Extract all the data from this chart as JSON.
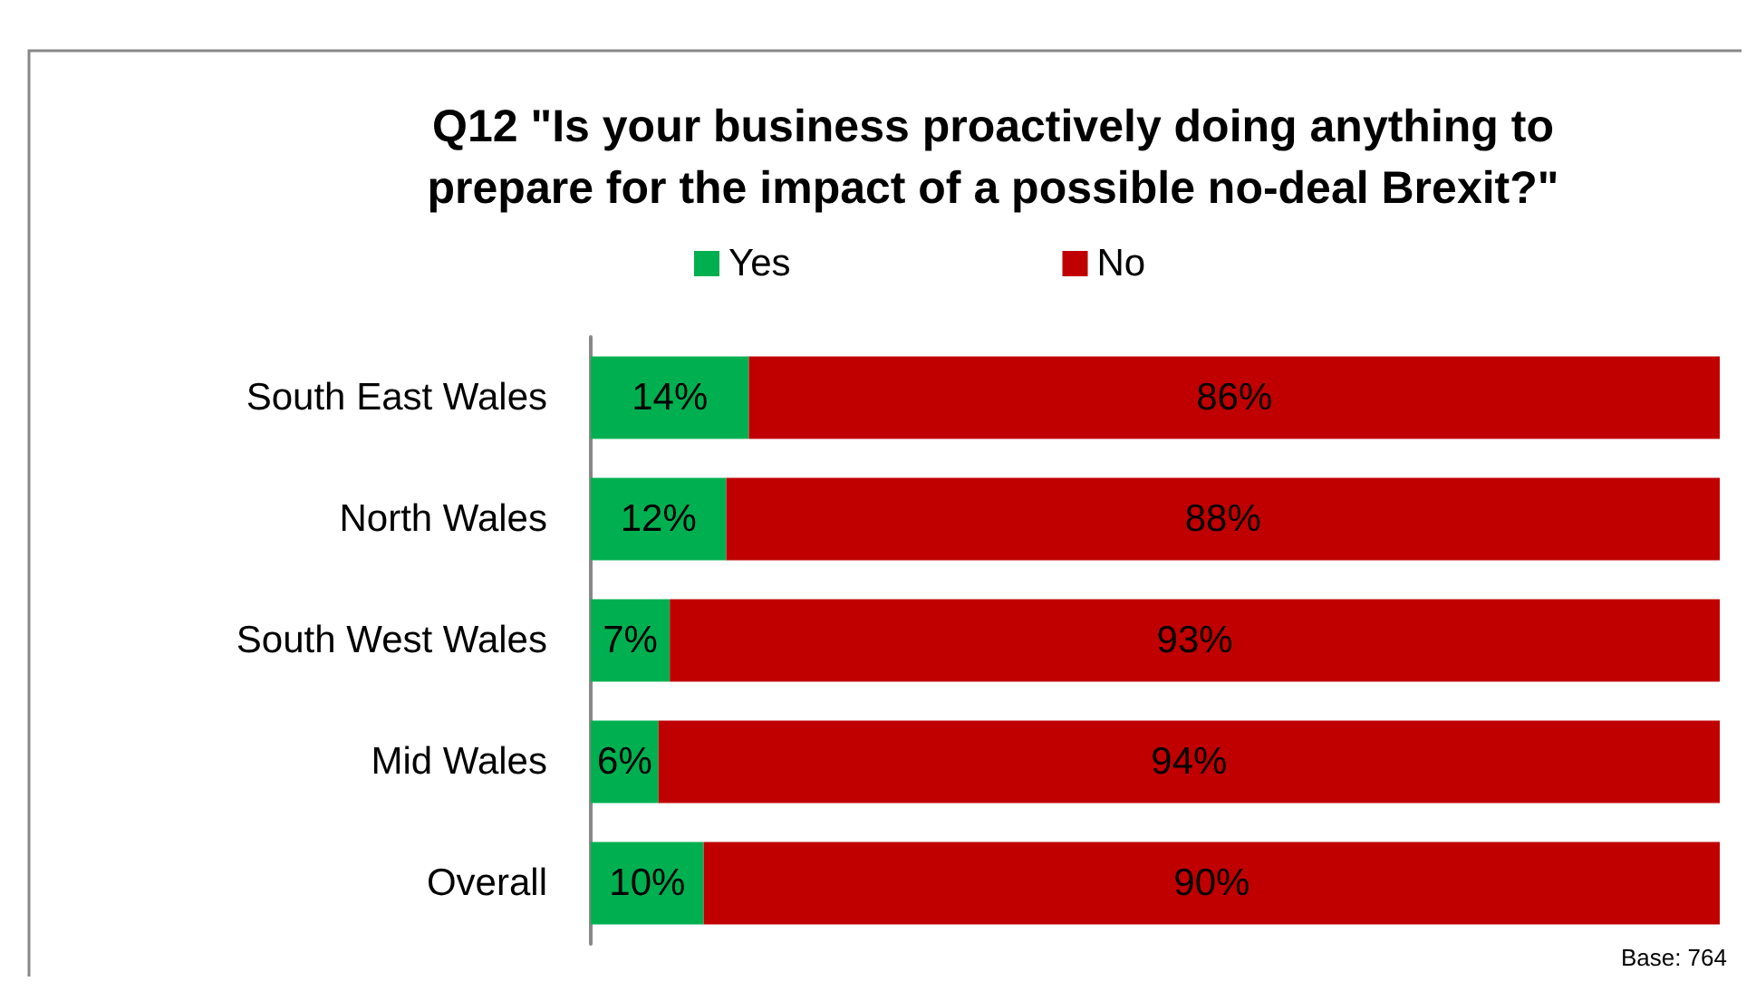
{
  "chart_data": {
    "type": "bar",
    "orientation": "horizontal",
    "stacked": true,
    "title": "Q12 \"Is your business proactively doing anything to\nprepare for the impact of a possible no-deal Brexit?\"",
    "categories": [
      "South East Wales",
      "North Wales",
      "South West Wales",
      "Mid Wales",
      "Overall"
    ],
    "series": [
      {
        "name": "Yes",
        "color": "#00b050",
        "values": [
          14,
          12,
          7,
          6,
          10
        ],
        "value_labels": [
          "14%",
          "12%",
          "7%",
          "6%",
          "10%"
        ]
      },
      {
        "name": "No",
        "color": "#c00000",
        "values": [
          86,
          88,
          93,
          94,
          90
        ],
        "value_labels": [
          "86%",
          "88%",
          "93%",
          "94%",
          "90%"
        ]
      }
    ],
    "legend": "top",
    "tick_labels": "y",
    "annotations": [
      "Base: 764"
    ]
  }
}
